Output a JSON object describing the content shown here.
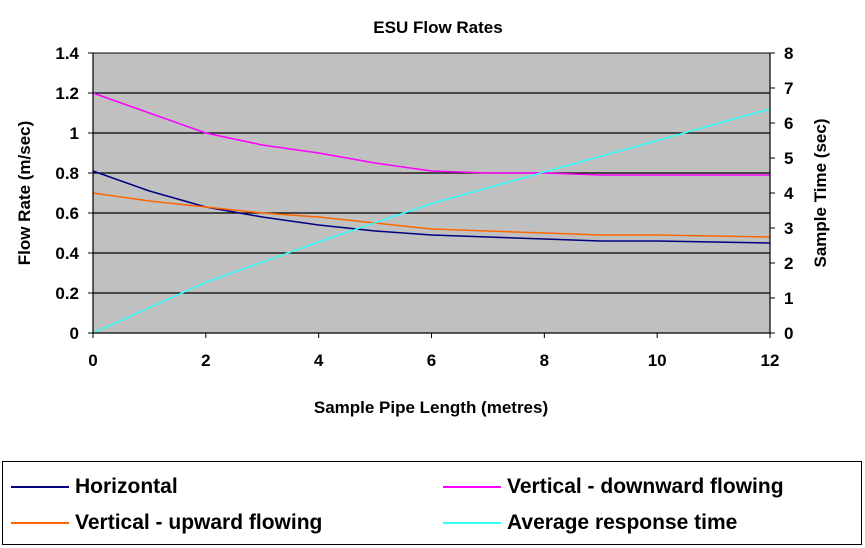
{
  "chart_data": {
    "type": "line",
    "title": "ESU Flow Rates",
    "xlabel": "Sample Pipe Length (metres)",
    "ylabel": "Flow Rate (m/sec)",
    "y2label": "Sample Time (sec)",
    "xlim": [
      0,
      12
    ],
    "ylim": [
      0,
      1.4
    ],
    "y2lim": [
      0,
      8
    ],
    "x_ticks": [
      "0",
      "2",
      "4",
      "6",
      "8",
      "10",
      "12"
    ],
    "y_ticks": [
      "0",
      "0.2",
      "0.4",
      "0.6",
      "0.8",
      "1",
      "1.2",
      "1.4"
    ],
    "y2_ticks": [
      "0",
      "1",
      "2",
      "3",
      "4",
      "5",
      "6",
      "7",
      "8"
    ],
    "grid": true,
    "plot_background": "#c0c0c0",
    "series": [
      {
        "name": "Horizontal",
        "color": "#000080",
        "axis": "left",
        "x": [
          0,
          1,
          2,
          3,
          4,
          5,
          6,
          7,
          8,
          9,
          10,
          11,
          12
        ],
        "values": [
          0.81,
          0.71,
          0.63,
          0.58,
          0.54,
          0.51,
          0.49,
          0.48,
          0.47,
          0.46,
          0.46,
          0.455,
          0.45
        ]
      },
      {
        "name": "Vertical - downward flowing",
        "color": "#ff00ff",
        "axis": "left",
        "x": [
          0,
          1,
          2,
          3,
          4,
          5,
          6,
          7,
          8,
          9,
          10,
          11,
          12
        ],
        "values": [
          1.2,
          1.1,
          1.0,
          0.94,
          0.9,
          0.85,
          0.81,
          0.8,
          0.8,
          0.79,
          0.79,
          0.79,
          0.79
        ]
      },
      {
        "name": "Vertical - upward flowing",
        "color": "#ff6600",
        "axis": "left",
        "x": [
          0,
          1,
          2,
          3,
          4,
          5,
          6,
          7,
          8,
          9,
          10,
          11,
          12
        ],
        "values": [
          0.7,
          0.66,
          0.63,
          0.6,
          0.58,
          0.55,
          0.52,
          0.51,
          0.5,
          0.49,
          0.49,
          0.485,
          0.48
        ]
      },
      {
        "name": "Average response time",
        "color": "#33ffff",
        "axis": "right",
        "x": [
          0,
          2,
          4,
          6,
          8,
          10,
          12
        ],
        "values": [
          0,
          1.45,
          2.6,
          3.7,
          4.6,
          5.5,
          6.4
        ]
      }
    ],
    "legend": {
      "position": "bottom"
    }
  }
}
